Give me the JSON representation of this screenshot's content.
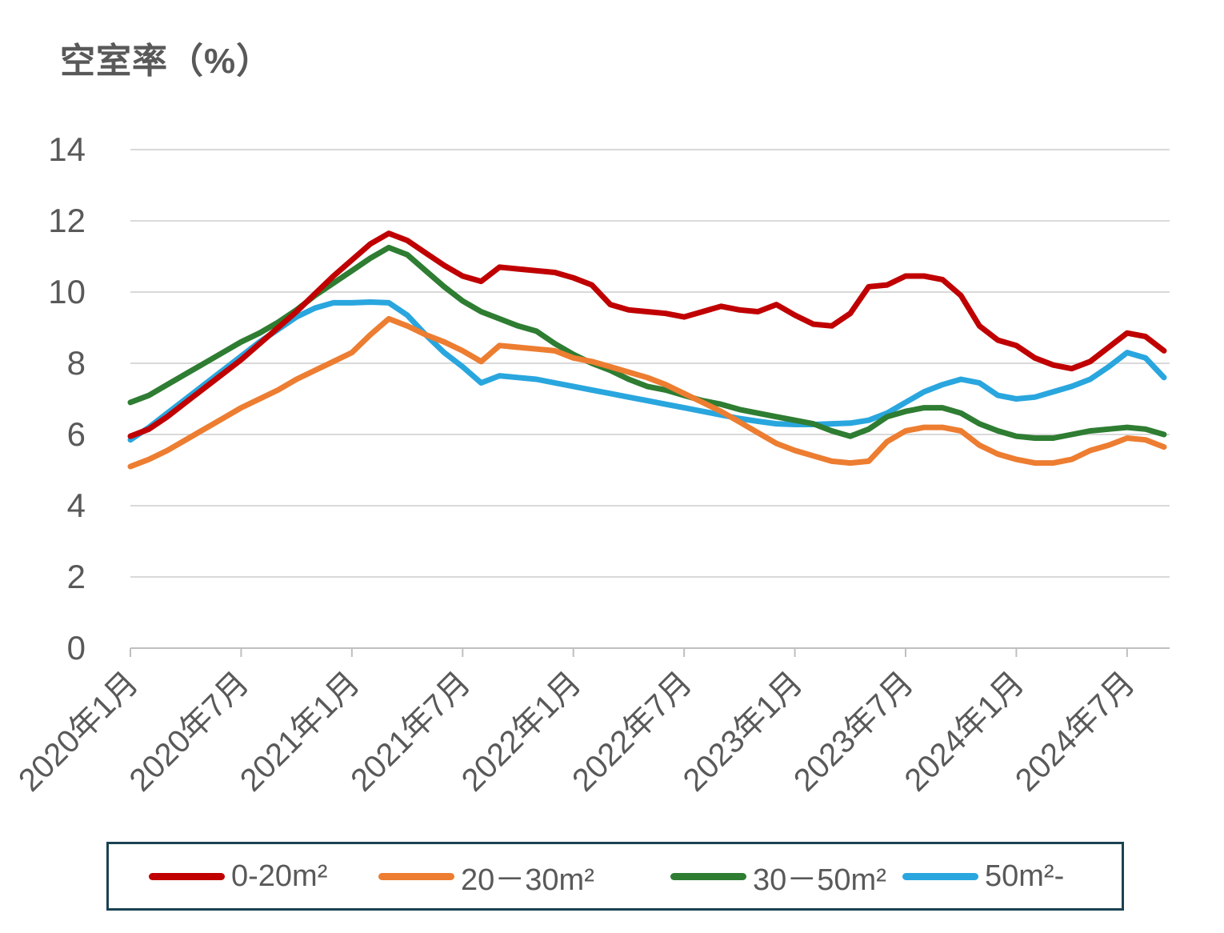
{
  "title": "空室率（%）",
  "colors": {
    "grid": "#D9D9D9",
    "axis": "#BFBFBF",
    "text": "#595959",
    "legend_border": "#1B4252",
    "background": "#FFFFFF"
  },
  "chart_data": {
    "type": "line",
    "title": "空室率（%）",
    "ylabel": "",
    "xlabel": "",
    "ylim": [
      0,
      14
    ],
    "y_tick_step": 2,
    "y_tick_labels": [
      "0",
      "2",
      "4",
      "6",
      "8",
      "10",
      "12",
      "14"
    ],
    "grid": "horizontal",
    "legend_position": "bottom",
    "n_points": 57,
    "x_start": "2020年1月",
    "x_end": "2024年9月",
    "x_tick_every": 6,
    "x_tick_labels": [
      "2020年1月",
      "2020年7月",
      "2021年1月",
      "2021年7月",
      "2022年1月",
      "2022年7月",
      "2023年1月",
      "2023年7月",
      "2024年1月",
      "2024年7月"
    ],
    "series": [
      {
        "name": "0-20m²",
        "color": "#C00000",
        "values": [
          5.95,
          6.15,
          6.5,
          6.9,
          7.3,
          7.7,
          8.1,
          8.55,
          9.0,
          9.45,
          9.95,
          10.45,
          10.9,
          11.35,
          11.65,
          11.45,
          11.1,
          10.75,
          10.45,
          10.3,
          10.7,
          10.65,
          10.6,
          10.55,
          10.4,
          10.2,
          9.65,
          9.5,
          9.45,
          9.4,
          9.3,
          9.45,
          9.6,
          9.5,
          9.45,
          9.65,
          9.35,
          9.1,
          9.05,
          9.4,
          10.15,
          10.2,
          10.45,
          10.45,
          10.35,
          9.9,
          9.05,
          8.65,
          8.5,
          8.15,
          7.95,
          7.85,
          8.05,
          8.45,
          8.85,
          8.75,
          8.35
        ]
      },
      {
        "name": "20－30m²",
        "color": "#ED7D31",
        "values": [
          5.1,
          5.3,
          5.55,
          5.85,
          6.15,
          6.45,
          6.75,
          7.0,
          7.25,
          7.55,
          7.8,
          8.05,
          8.3,
          8.8,
          9.25,
          9.05,
          8.8,
          8.6,
          8.35,
          8.05,
          8.5,
          8.45,
          8.4,
          8.35,
          8.15,
          8.05,
          7.9,
          7.75,
          7.6,
          7.4,
          7.15,
          6.9,
          6.65,
          6.35,
          6.05,
          5.75,
          5.55,
          5.4,
          5.25,
          5.2,
          5.25,
          5.8,
          6.1,
          6.2,
          6.2,
          6.1,
          5.7,
          5.45,
          5.3,
          5.2,
          5.2,
          5.3,
          5.55,
          5.7,
          5.9,
          5.85,
          5.65
        ]
      },
      {
        "name": "30－50m²",
        "color": "#2E7D32",
        "values": [
          6.9,
          7.1,
          7.4,
          7.7,
          8.0,
          8.3,
          8.6,
          8.85,
          9.15,
          9.5,
          9.9,
          10.25,
          10.6,
          10.95,
          11.25,
          11.05,
          10.6,
          10.15,
          9.75,
          9.45,
          9.25,
          9.05,
          8.9,
          8.55,
          8.25,
          8.0,
          7.8,
          7.55,
          7.35,
          7.25,
          7.1,
          6.95,
          6.85,
          6.7,
          6.6,
          6.5,
          6.4,
          6.3,
          6.1,
          5.95,
          6.15,
          6.5,
          6.65,
          6.75,
          6.75,
          6.6,
          6.3,
          6.1,
          5.95,
          5.9,
          5.9,
          6.0,
          6.1,
          6.15,
          6.2,
          6.15,
          6.0
        ]
      },
      {
        "name": "50m²-",
        "color": "#29A6DE",
        "values": [
          5.85,
          6.2,
          6.6,
          7.0,
          7.4,
          7.8,
          8.2,
          8.6,
          8.95,
          9.3,
          9.55,
          9.7,
          9.7,
          9.72,
          9.7,
          9.35,
          8.8,
          8.3,
          7.9,
          7.45,
          7.65,
          7.6,
          7.55,
          7.45,
          7.35,
          7.25,
          7.15,
          7.05,
          6.95,
          6.85,
          6.75,
          6.65,
          6.55,
          6.45,
          6.37,
          6.3,
          6.28,
          6.28,
          6.3,
          6.32,
          6.4,
          6.6,
          6.9,
          7.2,
          7.4,
          7.55,
          7.45,
          7.1,
          7.0,
          7.05,
          7.2,
          7.35,
          7.55,
          7.9,
          8.3,
          8.15,
          7.6
        ]
      }
    ]
  },
  "legend": {
    "items": [
      {
        "label": "0-20m²"
      },
      {
        "label": "20－30m²"
      },
      {
        "label": "30－50m²"
      },
      {
        "label": "50m²-"
      }
    ]
  }
}
